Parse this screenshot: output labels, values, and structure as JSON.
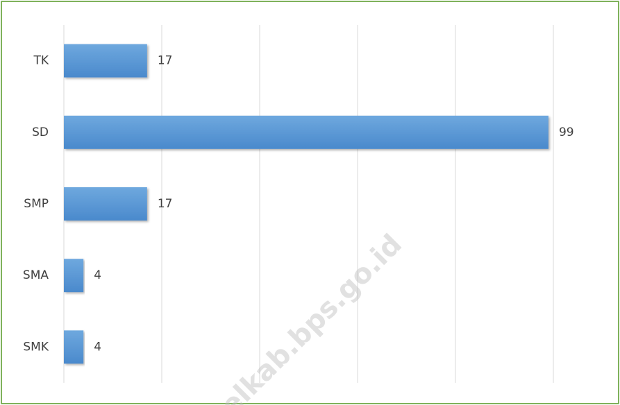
{
  "chart_data": {
    "type": "bar",
    "orientation": "horizontal",
    "categories": [
      "TK",
      "SD",
      "SMP",
      "SMA",
      "SMK"
    ],
    "values": [
      17,
      99,
      17,
      4,
      4
    ],
    "color": "#5b9bd5",
    "xlim": [
      0,
      100
    ],
    "xticks": [
      0,
      20,
      40,
      60,
      80,
      100
    ],
    "grid": true,
    "watermark": "elkab.bps.go.id"
  }
}
